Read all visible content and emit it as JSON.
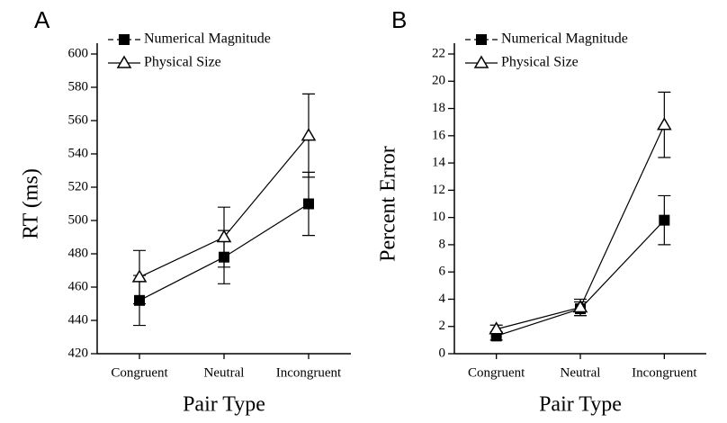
{
  "chart_data": [
    {
      "type": "line",
      "panel": "A",
      "ylabel": "RT (ms)",
      "xlabel": "Pair Type",
      "categories": [
        "Congruent",
        "Neutral",
        "Incongruent"
      ],
      "ylim": [
        420,
        600
      ],
      "yticks": [
        420,
        440,
        460,
        480,
        500,
        520,
        540,
        560,
        580,
        600
      ],
      "legend": "top-left",
      "series": [
        {
          "name": "Numerical Magnitude",
          "color": "#000000",
          "marker": "square",
          "values": [
            452,
            478,
            510
          ],
          "errors": [
            15,
            16,
            19
          ]
        },
        {
          "name": "Physical Size",
          "color": "#000000",
          "marker": "triangle",
          "values": [
            466,
            490,
            551
          ],
          "errors": [
            16,
            18,
            25
          ]
        }
      ]
    },
    {
      "type": "line",
      "panel": "B",
      "ylabel": "Percent Error",
      "xlabel": "Pair Type",
      "categories": [
        "Congruent",
        "Neutral",
        "Incongruent"
      ],
      "ylim": [
        0,
        22
      ],
      "yticks": [
        0,
        2,
        4,
        6,
        8,
        10,
        12,
        14,
        16,
        18,
        20,
        22
      ],
      "legend": "top-left",
      "series": [
        {
          "name": "Numerical Magnitude",
          "color": "#000000",
          "marker": "square",
          "values": [
            1.3,
            3.3,
            9.8
          ],
          "errors": [
            0.3,
            0.5,
            1.8
          ]
        },
        {
          "name": "Physical Size",
          "color": "#000000",
          "marker": "triangle",
          "values": [
            1.8,
            3.4,
            16.8
          ],
          "errors": [
            0.3,
            0.6,
            2.4
          ]
        }
      ]
    }
  ]
}
